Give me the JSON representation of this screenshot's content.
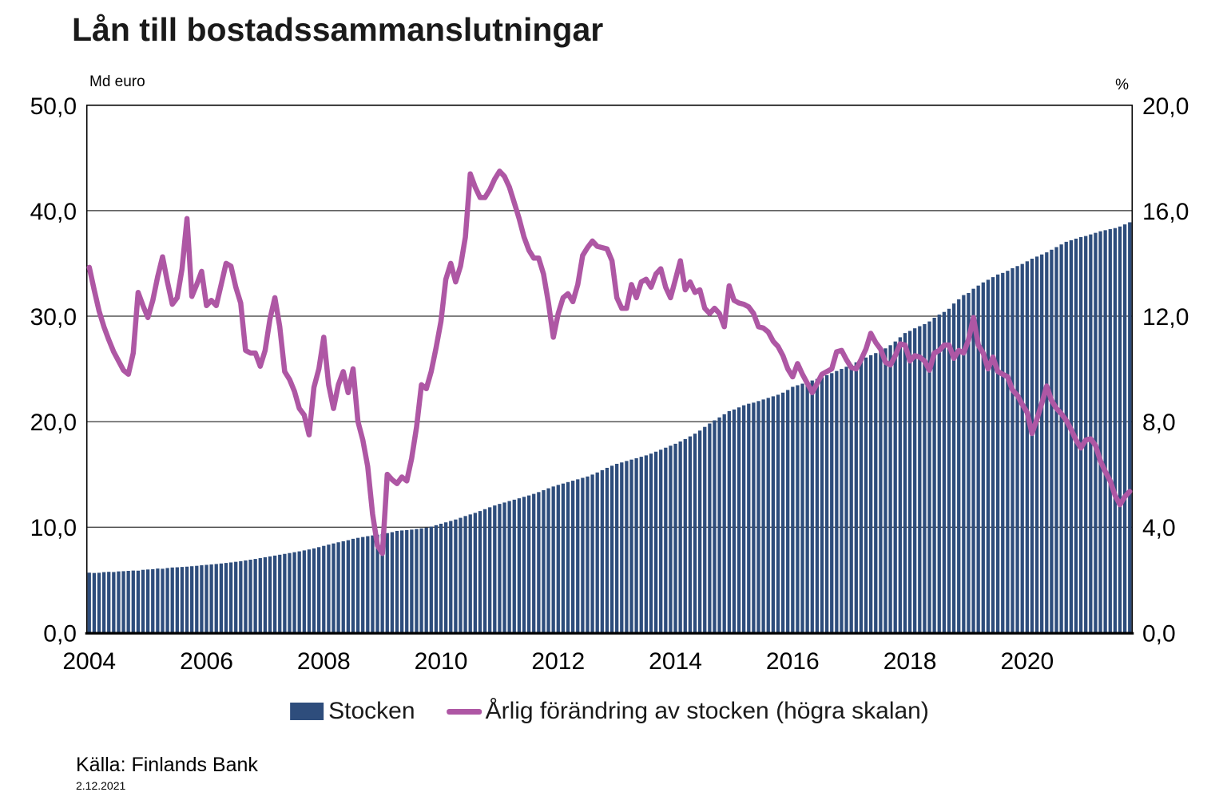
{
  "title": "Lån till bostadssammanslutningar",
  "legend": {
    "bars_label": "Stocken",
    "line_label": "Årlig förändring av stocken (högra skalan)"
  },
  "source": {
    "text": "Källa: Finlands Bank",
    "date": "2.12.2021"
  },
  "colors": {
    "bar": "#2e4d7c",
    "line": "#ae57a4",
    "grid": "#000000",
    "frame": "#000000",
    "text": "#000000"
  },
  "chart_data": {
    "type": "bar+line",
    "title": "Lån till bostadssammanslutningar",
    "left_axis_title": "Md euro",
    "right_axis_title": "%",
    "left_ylim": [
      0,
      50
    ],
    "right_ylim": [
      0,
      20
    ],
    "left_ticks": [
      "0,0",
      "10,0",
      "20,0",
      "30,0",
      "40,0",
      "50,0"
    ],
    "right_ticks": [
      "0,0",
      "4,0",
      "8,0",
      "12,0",
      "16,0",
      "20,0"
    ],
    "x_tick_years": [
      2004,
      2006,
      2008,
      2010,
      2012,
      2014,
      2016,
      2018,
      2020
    ],
    "start_year": 2004,
    "start_month": 1,
    "frequency": "monthly",
    "grid": "horizontal, behind bars",
    "legend_position": "bottom center",
    "series": [
      {
        "name": "Stocken",
        "type": "bar",
        "axis": "left",
        "unit": "Md euro",
        "values": [
          5.68,
          5.65,
          5.67,
          5.73,
          5.76,
          5.74,
          5.8,
          5.82,
          5.85,
          5.88,
          5.87,
          5.95,
          5.98,
          6.01,
          6.07,
          6.05,
          6.12,
          6.17,
          6.19,
          6.22,
          6.25,
          6.29,
          6.33,
          6.38,
          6.42,
          6.46,
          6.5,
          6.55,
          6.6,
          6.65,
          6.71,
          6.77,
          6.84,
          6.91,
          6.98,
          7.06,
          7.14,
          7.22,
          7.3,
          7.38,
          7.46,
          7.54,
          7.62,
          7.7,
          7.79,
          7.88,
          7.98,
          8.1,
          8.22,
          8.34,
          8.45,
          8.56,
          8.66,
          8.76,
          8.89,
          8.98,
          9.06,
          9.14,
          9.21,
          9.28,
          9.35,
          9.43,
          9.52,
          9.64,
          9.68,
          9.72,
          9.76,
          9.82,
          9.88,
          9.95,
          10.05,
          10.18,
          10.32,
          10.45,
          10.58,
          10.72,
          10.88,
          11.05,
          11.2,
          11.35,
          11.52,
          11.7,
          11.88,
          12.05,
          12.2,
          12.33,
          12.47,
          12.6,
          12.73,
          12.87,
          13.0,
          13.15,
          13.32,
          13.5,
          13.68,
          13.85,
          14.0,
          14.13,
          14.27,
          14.4,
          14.53,
          14.67,
          14.8,
          14.98,
          15.18,
          15.4,
          15.62,
          15.82,
          16.0,
          16.13,
          16.27,
          16.4,
          16.53,
          16.67,
          16.8,
          16.97,
          17.15,
          17.34,
          17.53,
          17.72,
          17.9,
          18.12,
          18.35,
          18.6,
          18.86,
          19.15,
          19.5,
          19.82,
          20.12,
          20.4,
          20.7,
          21.0,
          21.15,
          21.35,
          21.55,
          21.7,
          21.8,
          21.95,
          22.1,
          22.25,
          22.4,
          22.55,
          22.75,
          23.0,
          23.3,
          23.45,
          23.6,
          23.75,
          23.9,
          24.05,
          24.2,
          24.4,
          24.6,
          24.8,
          25.0,
          25.2,
          25.4,
          25.62,
          25.85,
          26.08,
          26.3,
          26.5,
          26.7,
          26.95,
          27.25,
          27.6,
          28.0,
          28.4,
          28.6,
          28.85,
          29.05,
          29.25,
          29.5,
          29.85,
          30.15,
          30.4,
          30.7,
          31.2,
          31.6,
          32.0,
          32.2,
          32.6,
          32.9,
          33.2,
          33.45,
          33.7,
          33.95,
          34.1,
          34.3,
          34.55,
          34.75,
          34.95,
          35.2,
          35.45,
          35.65,
          35.85,
          36.05,
          36.3,
          36.55,
          36.8,
          37.05,
          37.2,
          37.35,
          37.5,
          37.6,
          37.75,
          37.9,
          38.05,
          38.15,
          38.25,
          38.35,
          38.5,
          38.7,
          38.9
        ]
      },
      {
        "name": "Årlig förändring av stocken (högra skalan)",
        "type": "line",
        "axis": "right",
        "unit": "%",
        "values": [
          13.85,
          13.0,
          12.2,
          11.6,
          11.1,
          10.65,
          10.3,
          9.95,
          9.8,
          10.6,
          12.9,
          12.4,
          11.95,
          12.6,
          13.5,
          14.25,
          13.3,
          12.45,
          12.7,
          13.8,
          15.7,
          12.75,
          13.2,
          13.7,
          12.4,
          12.6,
          12.4,
          13.2,
          14.0,
          13.9,
          13.1,
          12.5,
          10.7,
          10.6,
          10.6,
          10.1,
          10.7,
          11.9,
          12.7,
          11.6,
          9.9,
          9.6,
          9.15,
          8.5,
          8.25,
          7.5,
          9.3,
          10.0,
          11.2,
          9.4,
          8.5,
          9.4,
          9.9,
          9.1,
          10.0,
          8.0,
          7.3,
          6.3,
          4.5,
          3.3,
          3.0,
          6.0,
          5.8,
          5.65,
          5.9,
          5.75,
          6.6,
          7.8,
          9.4,
          9.25,
          9.9,
          10.8,
          11.8,
          13.4,
          14.0,
          13.3,
          13.9,
          15.0,
          17.4,
          16.9,
          16.5,
          16.5,
          16.8,
          17.2,
          17.5,
          17.3,
          16.9,
          16.3,
          15.7,
          15.0,
          14.5,
          14.2,
          14.2,
          13.6,
          12.5,
          11.2,
          12.1,
          12.7,
          12.85,
          12.55,
          13.2,
          14.3,
          14.6,
          14.85,
          14.65,
          14.6,
          14.55,
          14.1,
          12.7,
          12.3,
          12.3,
          13.2,
          12.7,
          13.3,
          13.4,
          13.1,
          13.6,
          13.8,
          13.1,
          12.7,
          13.4,
          14.1,
          13.0,
          13.3,
          12.9,
          13.0,
          12.3,
          12.1,
          12.3,
          12.1,
          11.6,
          13.15,
          12.6,
          12.5,
          12.45,
          12.35,
          12.1,
          11.6,
          11.55,
          11.4,
          11.05,
          10.85,
          10.5,
          10.0,
          9.7,
          10.2,
          9.8,
          9.45,
          9.1,
          9.45,
          9.8,
          9.9,
          10.0,
          10.65,
          10.7,
          10.35,
          10.05,
          10.0,
          10.35,
          10.75,
          11.35,
          11.0,
          10.75,
          10.25,
          10.15,
          10.5,
          10.95,
          10.9,
          10.3,
          10.5,
          10.45,
          10.3,
          9.95,
          10.6,
          10.7,
          10.9,
          10.9,
          10.4,
          10.7,
          10.6,
          11.1,
          11.95,
          10.9,
          10.6,
          10.0,
          10.45,
          9.9,
          9.8,
          9.7,
          9.2,
          9.0,
          8.65,
          8.35,
          7.55,
          8.1,
          8.7,
          9.35,
          8.8,
          8.5,
          8.3,
          8.05,
          7.7,
          7.3,
          7.0,
          7.3,
          7.35,
          7.1,
          6.5,
          6.1,
          5.75,
          5.2,
          4.85,
          5.15,
          5.35
        ]
      }
    ]
  }
}
